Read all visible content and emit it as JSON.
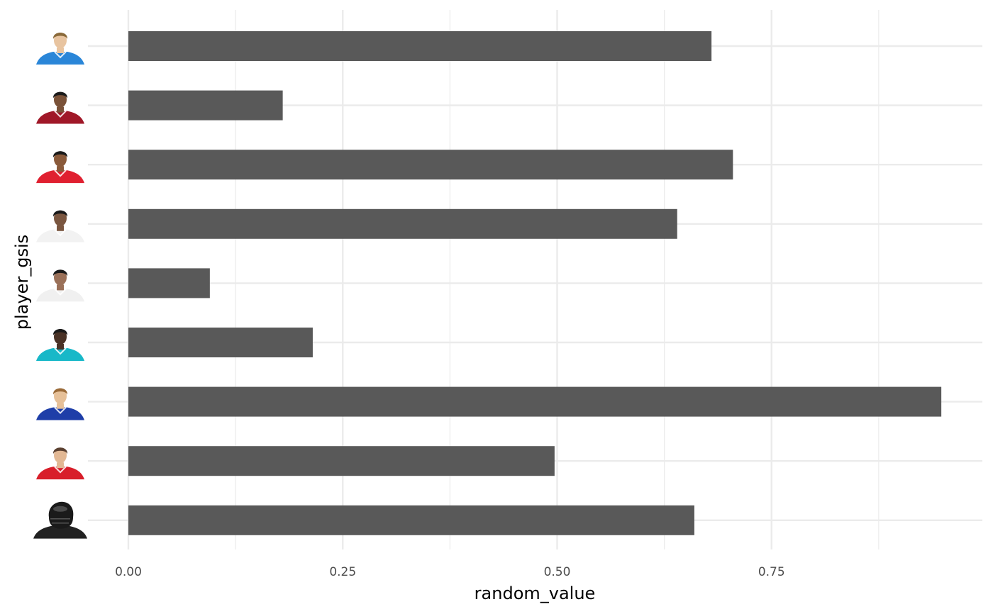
{
  "chart_data": {
    "type": "bar",
    "orientation": "horizontal",
    "xlabel": "random_value",
    "ylabel": "player_gsis",
    "xlim": [
      -0.04,
      0.96
    ],
    "x_ticks": [
      "0.00",
      "0.25",
      "0.50",
      "0.75"
    ],
    "x_tick_values": [
      0,
      0.25,
      0.5,
      0.75
    ],
    "x_minor_tick_values": [
      0.125,
      0.375,
      0.625,
      0.875
    ],
    "grid": true,
    "bar_color": "#595959",
    "grid_color": "#ebebeb",
    "categories": [
      {
        "icon": "player-headshot-blue-uniform-icon",
        "hair": "#8a6a3a",
        "skin": "#e8c4a0",
        "jersey": "#2a86d8",
        "helmet": false
      },
      {
        "icon": "player-headshot-dark-red-uniform-icon",
        "hair": "#1a1a1a",
        "skin": "#7a5238",
        "jersey": "#a01828",
        "helmet": false
      },
      {
        "icon": "player-headshot-red-uniform-icon",
        "hair": "#1a1a1a",
        "skin": "#8a5a3a",
        "jersey": "#e02030",
        "helmet": false
      },
      {
        "icon": "player-headshot-white-uniform-icon",
        "hair": "#1a1a1a",
        "skin": "#7a5640",
        "jersey": "#f2f2f2",
        "helmet": false
      },
      {
        "icon": "player-headshot-white-black-uniform-icon",
        "hair": "#1a1a1a",
        "skin": "#9a7058",
        "jersey": "#f0f0f0",
        "helmet": false
      },
      {
        "icon": "player-headshot-teal-uniform-icon",
        "hair": "#1a1a1a",
        "skin": "#4a3226",
        "jersey": "#18b8c8",
        "helmet": false
      },
      {
        "icon": "player-headshot-royal-blue-uniform-icon",
        "hair": "#9a6a38",
        "skin": "#e6c098",
        "jersey": "#1e3ea8",
        "helmet": false
      },
      {
        "icon": "player-headshot-red-white-uniform-icon",
        "hair": "#5a4030",
        "skin": "#e2b894",
        "jersey": "#d81e2a",
        "helmet": false
      },
      {
        "icon": "player-silhouette-black-helmet-icon",
        "hair": "#000000",
        "skin": "#1a1a1a",
        "jersey": "#222222",
        "helmet": true
      }
    ],
    "values": [
      0.68,
      0.18,
      0.705,
      0.64,
      0.095,
      0.215,
      0.948,
      0.497,
      0.66
    ]
  }
}
